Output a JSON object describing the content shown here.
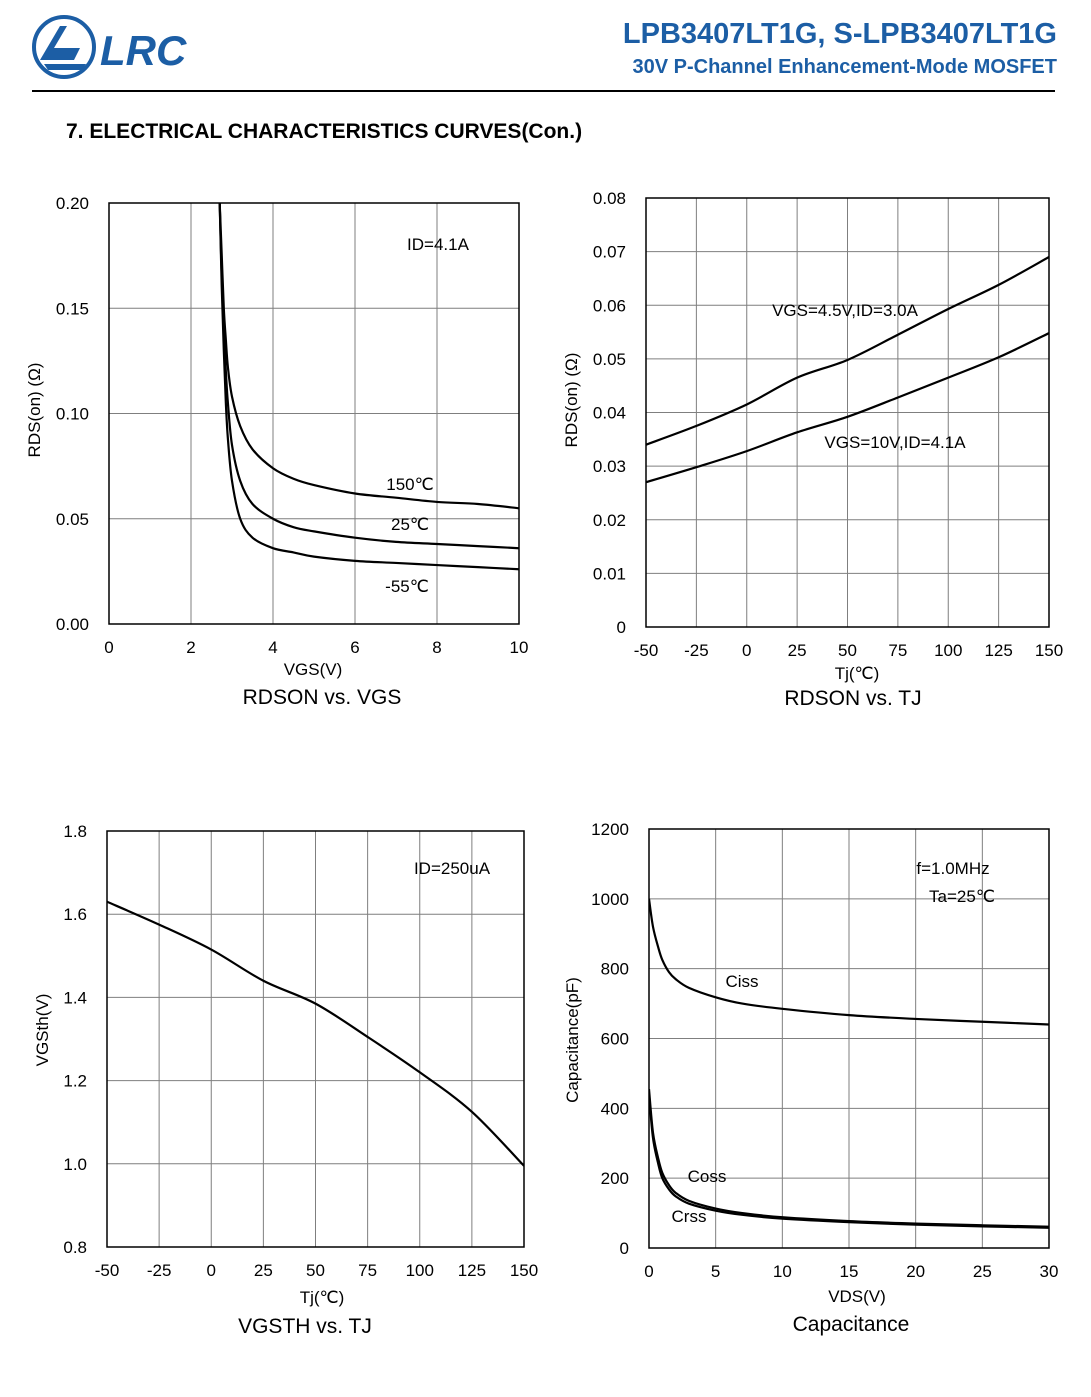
{
  "header": {
    "logo_text": "LRC",
    "part_numbers": "LPB3407LT1G, S-LPB3407LT1G",
    "description": "30V P-Channel Enhancement-Mode MOSFET",
    "brand_color": "#1c5ea5"
  },
  "section_title": "7. ELECTRICAL CHARACTERISTICS CURVES(Con.)",
  "chart_data": [
    {
      "type": "line",
      "title": "RDSON vs. VGS",
      "xlabel": "VGS(V)",
      "ylabel": "RDS(on) (Ω)",
      "xlim": [
        0,
        10
      ],
      "ylim": [
        0,
        0.2
      ],
      "xticks": [
        0,
        2,
        4,
        6,
        8,
        10
      ],
      "yticks": [
        0,
        0.05,
        0.1,
        0.15,
        0.2
      ],
      "xtick_labels": [
        "0",
        "2",
        "4",
        "6",
        "8",
        "10"
      ],
      "ytick_labels": [
        "0.00",
        "0.05",
        "0.10",
        "0.15",
        "0.20"
      ],
      "grid": true,
      "annotations": [
        "ID=4.1A"
      ],
      "series": [
        {
          "name": "150℃",
          "x": [
            2.7,
            2.75,
            2.8,
            2.85,
            2.9,
            3.0,
            3.2,
            3.5,
            4.0,
            4.5,
            5.0,
            6.0,
            7.0,
            8.0,
            9.0,
            10.0
          ],
          "y": [
            0.2,
            0.175,
            0.15,
            0.135,
            0.122,
            0.108,
            0.094,
            0.083,
            0.074,
            0.069,
            0.066,
            0.062,
            0.06,
            0.058,
            0.057,
            0.055
          ]
        },
        {
          "name": "25℃",
          "x": [
            2.7,
            2.75,
            2.8,
            2.85,
            2.9,
            3.0,
            3.2,
            3.5,
            4.0,
            4.5,
            5.0,
            6.0,
            7.0,
            8.0,
            9.0,
            10.0
          ],
          "y": [
            0.2,
            0.165,
            0.14,
            0.12,
            0.105,
            0.085,
            0.068,
            0.057,
            0.05,
            0.046,
            0.044,
            0.041,
            0.039,
            0.038,
            0.037,
            0.036
          ]
        },
        {
          "name": "-55℃",
          "x": [
            2.7,
            2.75,
            2.8,
            2.85,
            2.9,
            3.0,
            3.2,
            3.5,
            4.0,
            4.5,
            5.0,
            6.0,
            7.0,
            8.0,
            9.0,
            10.0
          ],
          "y": [
            0.2,
            0.16,
            0.13,
            0.105,
            0.088,
            0.068,
            0.05,
            0.041,
            0.036,
            0.034,
            0.032,
            0.03,
            0.029,
            0.028,
            0.027,
            0.026
          ]
        }
      ]
    },
    {
      "type": "line",
      "title": "RDSON vs. TJ",
      "xlabel": "Tj(℃)",
      "ylabel": "RDS(on) (Ω)",
      "xlim": [
        -50,
        150
      ],
      "ylim": [
        0,
        0.08
      ],
      "xticks": [
        -50,
        -25,
        0,
        25,
        50,
        75,
        100,
        125,
        150
      ],
      "yticks": [
        0,
        0.01,
        0.02,
        0.03,
        0.04,
        0.05,
        0.06,
        0.07,
        0.08
      ],
      "xtick_labels": [
        "-50",
        "-25",
        "0",
        "25",
        "50",
        "75",
        "100",
        "125",
        "150"
      ],
      "ytick_labels": [
        "0",
        "0.01",
        "0.02",
        "0.03",
        "0.04",
        "0.05",
        "0.06",
        "0.07",
        "0.08"
      ],
      "grid": true,
      "annotations": [],
      "series": [
        {
          "name": "VGS=4.5V,ID=3.0A",
          "x": [
            -50,
            -25,
            0,
            25,
            50,
            75,
            100,
            125,
            150
          ],
          "y": [
            0.034,
            0.0375,
            0.0415,
            0.0465,
            0.0498,
            0.0545,
            0.0593,
            0.0638,
            0.069
          ]
        },
        {
          "name": "VGS=10V,ID=4.1A",
          "x": [
            -50,
            -25,
            0,
            25,
            50,
            75,
            100,
            125,
            150
          ],
          "y": [
            0.027,
            0.0298,
            0.0328,
            0.0363,
            0.0392,
            0.0428,
            0.0465,
            0.0503,
            0.0548
          ]
        }
      ]
    },
    {
      "type": "line",
      "title": "VGSTH vs. TJ",
      "xlabel": "Tj(℃)",
      "ylabel": "VGSth(V)",
      "xlim": [
        -50,
        150
      ],
      "ylim": [
        0.8,
        1.8
      ],
      "xticks": [
        -50,
        -25,
        0,
        25,
        50,
        75,
        100,
        125,
        150
      ],
      "yticks": [
        0.8,
        1.0,
        1.2,
        1.4,
        1.6,
        1.8
      ],
      "xtick_labels": [
        "-50",
        "-25",
        "0",
        "25",
        "50",
        "75",
        "100",
        "125",
        "150"
      ],
      "ytick_labels": [
        "0.8",
        "1.0",
        "1.2",
        "1.4",
        "1.6",
        "1.8"
      ],
      "grid": true,
      "annotations": [
        "ID=250uA"
      ],
      "series": [
        {
          "name": "",
          "x": [
            -50,
            -25,
            0,
            25,
            50,
            75,
            100,
            125,
            150
          ],
          "y": [
            1.63,
            1.575,
            1.515,
            1.44,
            1.385,
            1.305,
            1.22,
            1.125,
            0.995
          ]
        }
      ]
    },
    {
      "type": "line",
      "title": "Capacitance",
      "xlabel": "VDS(V)",
      "ylabel": "Capacitance(pF)",
      "xlim": [
        0,
        30
      ],
      "ylim": [
        0,
        1200
      ],
      "xticks": [
        0,
        5,
        10,
        15,
        20,
        25,
        30
      ],
      "yticks": [
        0,
        200,
        400,
        600,
        800,
        1000,
        1200
      ],
      "xtick_labels": [
        "0",
        "5",
        "10",
        "15",
        "20",
        "25",
        "30"
      ],
      "ytick_labels": [
        "0",
        "200",
        "400",
        "600",
        "800",
        "1000",
        "1200"
      ],
      "grid": true,
      "annotations": [
        "f=1.0MHz",
        "Ta=25℃"
      ],
      "series": [
        {
          "name": "Ciss",
          "x": [
            0,
            0.3,
            0.7,
            1,
            1.5,
            2,
            3,
            5,
            7,
            10,
            15,
            20,
            25,
            30
          ],
          "y": [
            1000,
            920,
            860,
            825,
            790,
            770,
            745,
            718,
            700,
            685,
            667,
            656,
            648,
            640
          ]
        },
        {
          "name": "Coss",
          "x": [
            0,
            0.3,
            0.7,
            1,
            1.5,
            2,
            3,
            5,
            7,
            10,
            15,
            20,
            25,
            30
          ],
          "y": [
            455,
            330,
            255,
            215,
            180,
            158,
            135,
            113,
            100,
            88,
            77,
            70,
            65,
            61
          ]
        },
        {
          "name": "Crss",
          "x": [
            0,
            0.3,
            0.7,
            1,
            1.5,
            2,
            3,
            5,
            7,
            10,
            15,
            20,
            25,
            30
          ],
          "y": [
            440,
            315,
            240,
            200,
            168,
            148,
            127,
            107,
            95,
            84,
            74,
            67,
            62,
            58
          ]
        }
      ]
    }
  ]
}
